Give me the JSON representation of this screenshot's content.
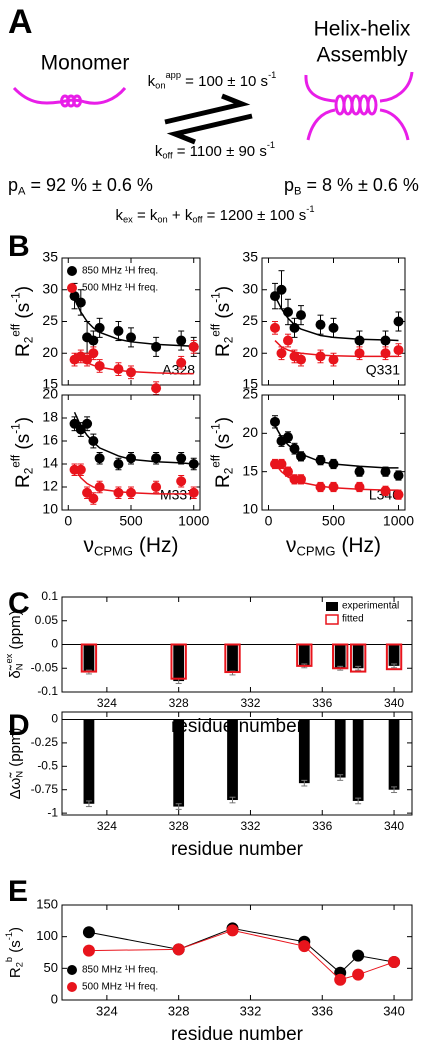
{
  "panel_a": {
    "label": "A",
    "monomer": "Monomer",
    "assembly": [
      "Helix-helix",
      "Assembly"
    ],
    "kon": [
      {
        "text": "k"
      },
      {
        "text": "on",
        "pos": "sub"
      },
      {
        "text": "app",
        "pos": "sup"
      },
      {
        "text": " = 100 ± 10 s"
      },
      {
        "text": "-1",
        "pos": "sup"
      }
    ],
    "koff": [
      {
        "text": "k"
      },
      {
        "text": "off",
        "pos": "sub"
      },
      {
        "text": " = 1100 ± 90 s"
      },
      {
        "text": "-1",
        "pos": "sup"
      }
    ],
    "pa": [
      {
        "text": "p"
      },
      {
        "text": "A",
        "pos": "sub"
      },
      {
        "text": " = 92 % ± 0.6 %"
      }
    ],
    "pb": [
      {
        "text": "p"
      },
      {
        "text": "B",
        "pos": "sub"
      },
      {
        "text": " = 8 % ± 0.6 %"
      }
    ],
    "kex": [
      {
        "text": "k"
      },
      {
        "text": "ex",
        "pos": "sub"
      },
      {
        "text": " = k"
      },
      {
        "text": "on",
        "pos": "sub"
      },
      {
        "text": " + k"
      },
      {
        "text": "off",
        "pos": "sub"
      },
      {
        "text": " = 1200 ± 100 s"
      },
      {
        "text": "-1",
        "pos": "sup"
      }
    ]
  },
  "chart_data": [
    {
      "type": "scatter",
      "panel": "B",
      "annotation": "A328",
      "legend": "upper left",
      "ylabel": [
        {
          "text": "R"
        },
        {
          "text": "2",
          "pos": "sub"
        },
        {
          "text": "eff",
          "pos": "sup"
        },
        {
          "text": " (s"
        },
        {
          "text": "-1",
          "pos": "sup"
        },
        {
          "text": ")"
        }
      ],
      "x": [
        50,
        100,
        150,
        200,
        250,
        400,
        500,
        700,
        900,
        1000
      ],
      "xlim": [
        -50,
        1050
      ],
      "xticks": [
        0,
        500,
        1000
      ],
      "ylim": [
        15,
        35
      ],
      "yticks": [
        15,
        20,
        25,
        30,
        35
      ],
      "series": [
        {
          "name": "850 MHz ¹H freq.",
          "color": "#000000",
          "values": [
            29,
            28,
            22.5,
            22,
            24,
            23.5,
            22.5,
            21,
            22,
            21
          ],
          "errors": [
            2,
            2,
            2.5,
            1.5,
            1.5,
            1.5,
            1.5,
            1.5,
            1.5,
            1.5
          ],
          "fit": [
            28.5,
            26.5,
            25,
            24,
            23.3,
            22.2,
            21.8,
            21.4,
            21.2,
            21.1
          ]
        },
        {
          "name": "500 MHz ¹H freq.",
          "color": "#e8141c",
          "values": [
            19,
            19.5,
            19,
            20,
            18,
            17.5,
            17,
            14.5,
            18.5,
            21
          ],
          "errors": [
            1,
            1,
            1,
            1,
            1,
            1,
            1,
            1,
            1,
            1
          ],
          "fit": [
            20,
            19,
            18.5,
            18.1,
            17.8,
            17.3,
            17.1,
            16.9,
            16.8,
            16.8
          ]
        }
      ]
    },
    {
      "type": "scatter",
      "annotation": "Q331",
      "ylabel": [
        {
          "text": "R"
        },
        {
          "text": "2",
          "pos": "sub"
        },
        {
          "text": "eff",
          "pos": "sup"
        },
        {
          "text": " (s"
        },
        {
          "text": "-1",
          "pos": "sup"
        },
        {
          "text": ")"
        }
      ],
      "x": [
        50,
        100,
        150,
        200,
        250,
        400,
        500,
        700,
        900,
        1000
      ],
      "xlim": [
        -50,
        1050
      ],
      "xticks": [
        0,
        500,
        1000
      ],
      "ylim": [
        15,
        35
      ],
      "yticks": [
        15,
        20,
        25,
        30,
        35
      ],
      "series": [
        {
          "color": "#000000",
          "values": [
            29,
            30,
            26.5,
            24,
            26,
            24.5,
            24,
            22,
            22,
            25
          ],
          "errors": [
            2,
            3,
            2,
            1.5,
            1.5,
            1.5,
            1.5,
            1.5,
            1.5,
            1.5
          ],
          "fit": [
            29,
            27,
            25.5,
            24.5,
            23.8,
            22.8,
            22.5,
            22.2,
            22.1,
            22
          ]
        },
        {
          "color": "#e8141c",
          "values": [
            24,
            20,
            22,
            19.5,
            19,
            19.5,
            19,
            20,
            20,
            20.5
          ],
          "errors": [
            1,
            1,
            1,
            1,
            1,
            1,
            1,
            1,
            1,
            1
          ],
          "fit": [
            22,
            21,
            20.5,
            20.2,
            20,
            19.7,
            19.6,
            19.5,
            19.5,
            19.5
          ]
        }
      ]
    },
    {
      "type": "scatter",
      "annotation": "M337",
      "ylabel": [
        {
          "text": "R"
        },
        {
          "text": "2",
          "pos": "sub"
        },
        {
          "text": "eff",
          "pos": "sup"
        },
        {
          "text": " (s"
        },
        {
          "text": "-1",
          "pos": "sup"
        },
        {
          "text": ")"
        }
      ],
      "xlabel": [
        {
          "text": "ν"
        },
        {
          "text": "CPMG",
          "pos": "sub"
        },
        {
          "text": " (Hz)"
        }
      ],
      "x": [
        50,
        100,
        150,
        200,
        250,
        400,
        500,
        700,
        900,
        1000
      ],
      "xlim": [
        -50,
        1050
      ],
      "xticks": [
        0,
        500,
        1000
      ],
      "ylim": [
        10,
        20
      ],
      "yticks": [
        10,
        12,
        14,
        16,
        18,
        20
      ],
      "series": [
        {
          "color": "#000000",
          "values": [
            17.5,
            17,
            17.5,
            16,
            14.5,
            14,
            14.5,
            14.5,
            14.5,
            14
          ],
          "errors": [
            0.6,
            0.6,
            0.6,
            0.6,
            0.5,
            0.5,
            0.5,
            0.5,
            0.5,
            0.5
          ],
          "fit": [
            18.5,
            17.3,
            16.5,
            15.9,
            15.4,
            14.7,
            14.4,
            14.2,
            14.1,
            14
          ]
        },
        {
          "color": "#e8141c",
          "values": [
            13.5,
            13.5,
            11.5,
            11,
            12,
            11.5,
            11.5,
            12,
            12.5,
            11.5
          ],
          "errors": [
            0.5,
            0.5,
            0.5,
            0.5,
            0.5,
            0.5,
            0.5,
            0.5,
            0.5,
            0.5
          ],
          "fit": [
            13.6,
            12.8,
            12.3,
            12,
            11.8,
            11.6,
            11.5,
            11.4,
            11.4,
            11.4
          ]
        }
      ]
    },
    {
      "type": "scatter",
      "annotation": "L340",
      "ylabel": [
        {
          "text": "R"
        },
        {
          "text": "2",
          "pos": "sub"
        },
        {
          "text": "eff",
          "pos": "sup"
        },
        {
          "text": " (s"
        },
        {
          "text": "-1",
          "pos": "sup"
        },
        {
          "text": ")"
        }
      ],
      "xlabel": [
        {
          "text": "ν"
        },
        {
          "text": "CPMG",
          "pos": "sub"
        },
        {
          "text": " (Hz)"
        }
      ],
      "x": [
        50,
        100,
        150,
        200,
        250,
        400,
        500,
        700,
        900,
        1000
      ],
      "xlim": [
        -50,
        1050
      ],
      "xticks": [
        0,
        500,
        1000
      ],
      "ylim": [
        10,
        25
      ],
      "yticks": [
        10,
        15,
        20,
        25
      ],
      "series": [
        {
          "color": "#000000",
          "values": [
            21.5,
            19,
            19.5,
            18,
            17,
            16.5,
            16,
            15,
            15,
            14.5
          ],
          "errors": [
            0.8,
            0.7,
            0.7,
            0.7,
            0.6,
            0.6,
            0.6,
            0.6,
            0.6,
            0.6
          ],
          "fit": [
            21,
            19.5,
            18.5,
            17.8,
            17.3,
            16.3,
            16,
            15.7,
            15.5,
            15.5
          ]
        },
        {
          "color": "#e8141c",
          "values": [
            16,
            16,
            15,
            14,
            14,
            13,
            13,
            13,
            12.5,
            12
          ],
          "errors": [
            0.6,
            0.6,
            0.6,
            0.6,
            0.6,
            0.6,
            0.6,
            0.6,
            0.6,
            0.6
          ],
          "fit": [
            16,
            15,
            14.3,
            13.9,
            13.6,
            13.1,
            12.9,
            12.7,
            12.6,
            12.6
          ]
        }
      ]
    },
    {
      "type": "bar",
      "panel": "C",
      "legend": "upper right",
      "zero_line": true,
      "ylabel": [
        {
          "text": "δ̃"
        },
        {
          "text": "N",
          "pos": "sub"
        },
        {
          "text": "ex",
          "pos": "sup"
        },
        {
          "text": " (ppm)"
        }
      ],
      "xlabel": [
        {
          "text": "residue number"
        }
      ],
      "x": [
        323,
        328,
        331,
        335,
        337,
        338,
        340
      ],
      "xlim": [
        321.5,
        341
      ],
      "xticks": [
        324,
        328,
        332,
        336,
        340
      ],
      "ylim": [
        -0.1,
        0.1
      ],
      "yticks": [
        -0.1,
        -0.05,
        0,
        0.05,
        0.1
      ],
      "series": [
        {
          "name": "experimental",
          "color": "#000000",
          "values": [
            -0.058,
            -0.077,
            -0.06,
            -0.045,
            -0.05,
            -0.05,
            -0.045
          ],
          "errors": [
            0.004,
            0.005,
            0.004,
            0.004,
            0.004,
            0.004,
            0.004
          ]
        },
        {
          "name": "fitted",
          "color": "#e8141c",
          "outline": true,
          "values": [
            -0.057,
            -0.072,
            -0.058,
            -0.045,
            -0.05,
            -0.057,
            -0.052
          ]
        }
      ]
    },
    {
      "type": "bar",
      "panel": "D",
      "zero_line": true,
      "ylabel": [
        {
          "text": "Δω̃"
        },
        {
          "text": "N",
          "pos": "sub"
        },
        {
          "text": " (ppm)"
        }
      ],
      "xlabel": [
        {
          "text": "residue number"
        }
      ],
      "x": [
        323,
        328,
        331,
        335,
        337,
        338,
        340
      ],
      "xlim": [
        321.5,
        341
      ],
      "xticks": [
        324,
        328,
        332,
        336,
        340
      ],
      "ylim": [
        -1.02,
        0.08
      ],
      "yticks": [
        -1,
        -0.75,
        -0.5,
        -0.25,
        0
      ],
      "series": [
        {
          "color": "#000000",
          "values": [
            -0.9,
            -0.93,
            -0.86,
            -0.68,
            -0.62,
            -0.87,
            -0.75
          ],
          "errors": [
            0.03,
            0.03,
            0.03,
            0.03,
            0.03,
            0.03,
            0.03
          ]
        }
      ]
    },
    {
      "type": "line",
      "panel": "E",
      "legend": "lower left",
      "ylabel": [
        {
          "text": "R"
        },
        {
          "text": "2",
          "pos": "sub"
        },
        {
          "text": "b",
          "pos": "sup"
        },
        {
          "text": " (s"
        },
        {
          "text": "-1",
          "pos": "sup"
        },
        {
          "text": ")"
        }
      ],
      "xlabel": [
        {
          "text": "residue number"
        }
      ],
      "x": [
        323,
        328,
        331,
        335,
        337,
        338,
        340
      ],
      "xlim": [
        321.5,
        341
      ],
      "xticks": [
        324,
        328,
        332,
        336,
        340
      ],
      "ylim": [
        0,
        150
      ],
      "yticks": [
        0,
        50,
        100,
        150
      ],
      "series": [
        {
          "name": "850 MHz ¹H freq.",
          "color": "#000000",
          "values": [
            107,
            80,
            113,
            92,
            43,
            70,
            60
          ],
          "errors": [
            6,
            4,
            6,
            4,
            3,
            3,
            3
          ]
        },
        {
          "name": "500 MHz ¹H freq.",
          "color": "#e8141c",
          "values": [
            78,
            80,
            110,
            85,
            32,
            40,
            60
          ],
          "errors": [
            3,
            3,
            4,
            3,
            3,
            3,
            3
          ]
        }
      ]
    }
  ]
}
